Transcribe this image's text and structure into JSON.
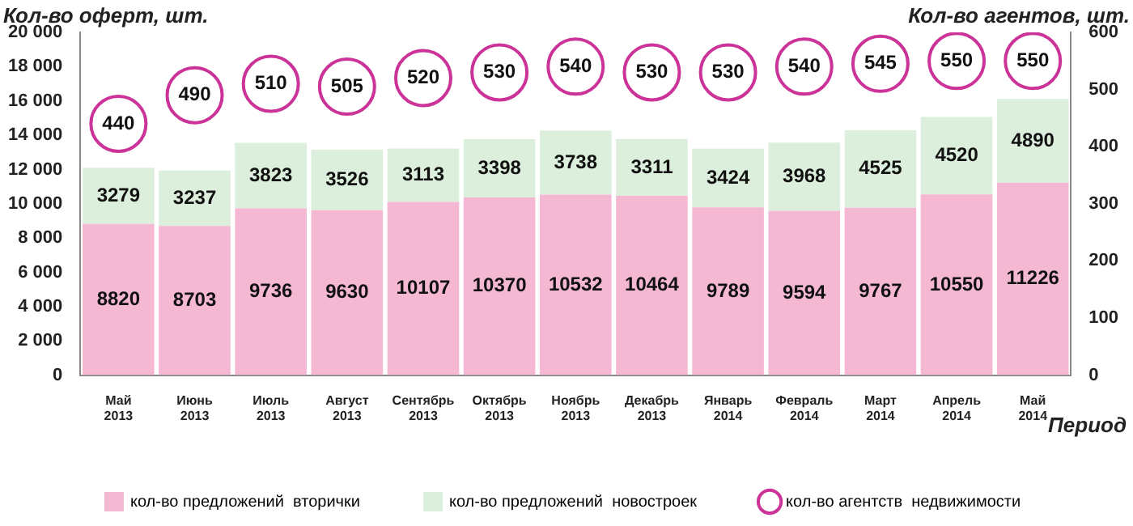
{
  "chart_data": {
    "type": "bar",
    "stacked": true,
    "xlabel": "Период",
    "ylabel": "Кол-во оферт, шт.",
    "y2label": "Кол-во агентов, шт.",
    "categories": [
      "Май 2013",
      "Июнь 2013",
      "Июль 2013",
      "Август 2013",
      "Сентябрь 2013",
      "Октябрь 2013",
      "Ноябрь 2013",
      "Декабрь 2013",
      "Январь 2014",
      "Февраль 2014",
      "Март 2014",
      "Апрель 2014",
      "Май 2014"
    ],
    "series": [
      {
        "name": "кол-во предложений  вторички",
        "type": "bar",
        "color": "#f4b8d3",
        "values": [
          8820,
          8703,
          9736,
          9630,
          10107,
          10370,
          10532,
          10464,
          9789,
          9594,
          9767,
          10550,
          11226
        ]
      },
      {
        "name": "кол-во предложений  новостроек",
        "type": "bar",
        "color": "#dcefdc",
        "values": [
          3279,
          3237,
          3823,
          3526,
          3113,
          3398,
          3738,
          3311,
          3424,
          3968,
          4525,
          4520,
          4890
        ]
      },
      {
        "name": "кол-во агентств  недвижимости",
        "type": "scatter",
        "axis": "y2",
        "marker": "circle",
        "color": "#cc3399",
        "x": [
          "Май 2013",
          "Июнь 2013",
          "Июль 2013",
          "Август 2013",
          "Сентябрь 2013",
          "Октябрь 2013",
          "Ноябрь 2013",
          "Декабрь 2013",
          "Январь 2014",
          "Февраль 2014",
          "Март 2014",
          "Апрель 2014",
          "Май 2014"
        ],
        "values": [
          440,
          490,
          510,
          505,
          520,
          530,
          540,
          530,
          530,
          540,
          545,
          550,
          550
        ]
      }
    ],
    "ylim": [
      0,
      20000
    ],
    "yticks": [
      {
        "value": 0,
        "label": "0"
      },
      {
        "value": 2000,
        "label": "2 000"
      },
      {
        "value": 4000,
        "label": "4 000"
      },
      {
        "value": 6000,
        "label": "6 000"
      },
      {
        "value": 8000,
        "label": "8 000"
      },
      {
        "value": 10000,
        "label": "10 000"
      },
      {
        "value": 12000,
        "label": "12 000"
      },
      {
        "value": 14000,
        "label": "14 000"
      },
      {
        "value": 16000,
        "label": "16 000"
      },
      {
        "value": 18000,
        "label": "18 000"
      },
      {
        "value": 20000,
        "label": "20 000"
      }
    ],
    "y2lim": [
      0,
      600
    ],
    "y2ticks": [
      0,
      100,
      200,
      300,
      400,
      500,
      600
    ],
    "grid": false,
    "legend": "bottom",
    "data_labels": true
  }
}
